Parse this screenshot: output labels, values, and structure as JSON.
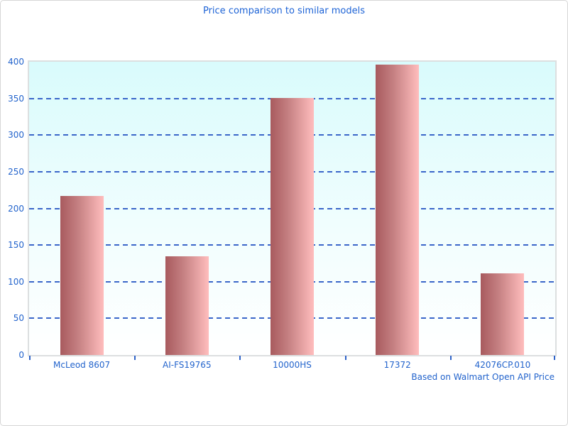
{
  "window": {
    "title": "Price comparison to similar models"
  },
  "chart_data": {
    "type": "bar",
    "title": "Price comparison to similar models",
    "categories": [
      "McLeod 8607",
      "AI-FS19765",
      "10000HS",
      "17372",
      "42076CP.010"
    ],
    "values": [
      217,
      135,
      351,
      396,
      111
    ],
    "xlabel": "",
    "ylabel": "",
    "ylim": [
      0,
      400
    ],
    "yticks": [
      0,
      50,
      100,
      150,
      200,
      250,
      300,
      350,
      400
    ],
    "grid": "horizontal-dashed",
    "legend": "none",
    "footnote": "Based on Walmart Open API Price"
  },
  "colors": {
    "title_text": "#1d63d6",
    "axis_text": "#2263cc",
    "gridline": "#3a66c9",
    "tick": "#2f63c8",
    "bar_gradient_left": "#a85a5e",
    "bar_gradient_right": "#ffbdbd",
    "plot_bg_top": "#d9fbfc",
    "plot_bg_bottom": "#ffffff",
    "plot_border": "#dcdfe0",
    "canvas_border": "#d6d6d6"
  }
}
